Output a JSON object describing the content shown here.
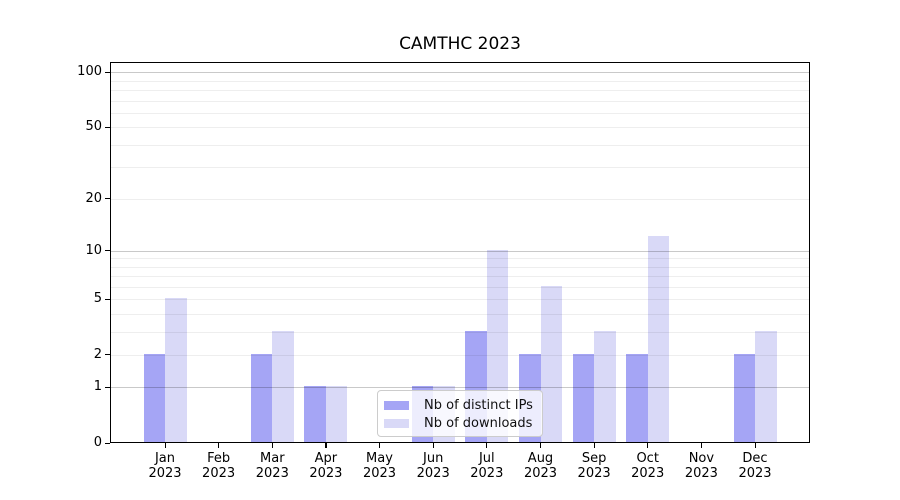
{
  "chart_data": {
    "type": "bar",
    "title": "CAMTHC 2023",
    "categories": [
      "Jan 2023",
      "Feb 2023",
      "Mar 2023",
      "Apr 2023",
      "May 2023",
      "Jun 2023",
      "Jul 2023",
      "Aug 2023",
      "Sep 2023",
      "Oct 2023",
      "Nov 2023",
      "Dec 2023"
    ],
    "x_tick_months": [
      "Jan",
      "Feb",
      "Mar",
      "Apr",
      "May",
      "Jun",
      "Jul",
      "Aug",
      "Sep",
      "Oct",
      "Nov",
      "Dec"
    ],
    "x_tick_year": "2023",
    "series": [
      {
        "name": "Nb of distinct IPs",
        "color": "#a5a5f5",
        "values": [
          2,
          0,
          2,
          1,
          0,
          1,
          3,
          2,
          2,
          2,
          0,
          2
        ]
      },
      {
        "name": "Nb of downloads",
        "color": "#d9d9f7",
        "values": [
          5,
          0,
          3,
          1,
          0,
          1,
          10,
          6,
          3,
          12,
          0,
          3
        ]
      }
    ],
    "yscale": "log1p",
    "ylim": [
      0,
      113
    ],
    "y_tick_values": [
      100,
      50,
      20,
      10,
      5,
      2,
      1,
      0
    ],
    "y_tick_labels": [
      "100",
      "50",
      "20",
      "10",
      "5",
      "2",
      "1",
      "0"
    ],
    "y_gridlines_major": [
      1,
      10,
      100
    ],
    "y_gridlines_minor": [
      2,
      3,
      4,
      5,
      6,
      7,
      8,
      9,
      20,
      30,
      40,
      50,
      60,
      70,
      80,
      90
    ],
    "grid": true,
    "legend_position": "lower center inside"
  }
}
